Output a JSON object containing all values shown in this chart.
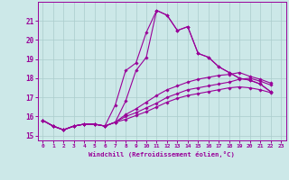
{
  "xlabel": "Windchill (Refroidissement éolien,°C)",
  "bg_color": "#cce8e8",
  "line_color": "#990099",
  "grid_color": "#aacccc",
  "series": [
    [
      15.8,
      15.5,
      15.3,
      15.5,
      15.6,
      15.6,
      15.5,
      15.7,
      16.8,
      18.4,
      19.1,
      21.55,
      21.3,
      20.5,
      20.7,
      19.3,
      19.1,
      18.6,
      18.3,
      18.0,
      17.9,
      17.7,
      17.3
    ],
    [
      15.8,
      15.5,
      15.3,
      15.5,
      15.6,
      15.6,
      15.5,
      16.6,
      18.4,
      18.8,
      20.4,
      21.55,
      21.3,
      20.5,
      20.7,
      19.3,
      19.1,
      18.6,
      18.3,
      18.0,
      17.9,
      17.7,
      17.3
    ],
    [
      15.8,
      15.5,
      15.3,
      15.5,
      15.6,
      15.6,
      15.5,
      15.7,
      15.85,
      16.05,
      16.25,
      16.5,
      16.75,
      16.95,
      17.1,
      17.2,
      17.3,
      17.4,
      17.5,
      17.55,
      17.5,
      17.4,
      17.25
    ],
    [
      15.8,
      15.5,
      15.3,
      15.5,
      15.6,
      15.6,
      15.5,
      15.7,
      16.0,
      16.2,
      16.45,
      16.7,
      17.0,
      17.2,
      17.4,
      17.5,
      17.6,
      17.7,
      17.8,
      17.95,
      18.0,
      17.85,
      17.65
    ],
    [
      15.8,
      15.5,
      15.3,
      15.5,
      15.6,
      15.6,
      15.5,
      15.7,
      16.1,
      16.4,
      16.75,
      17.1,
      17.4,
      17.6,
      17.8,
      17.95,
      18.05,
      18.15,
      18.2,
      18.3,
      18.1,
      17.95,
      17.75
    ]
  ],
  "x_start": 0,
  "x_end": 23,
  "ylim": [
    14.75,
    22.0
  ],
  "yticks": [
    15,
    16,
    17,
    18,
    19,
    20,
    21
  ],
  "xticks": [
    0,
    1,
    2,
    3,
    4,
    5,
    6,
    7,
    8,
    9,
    10,
    11,
    12,
    13,
    14,
    15,
    16,
    17,
    18,
    19,
    20,
    21,
    22,
    23
  ],
  "figsize": [
    3.2,
    2.0
  ],
  "dpi": 100
}
